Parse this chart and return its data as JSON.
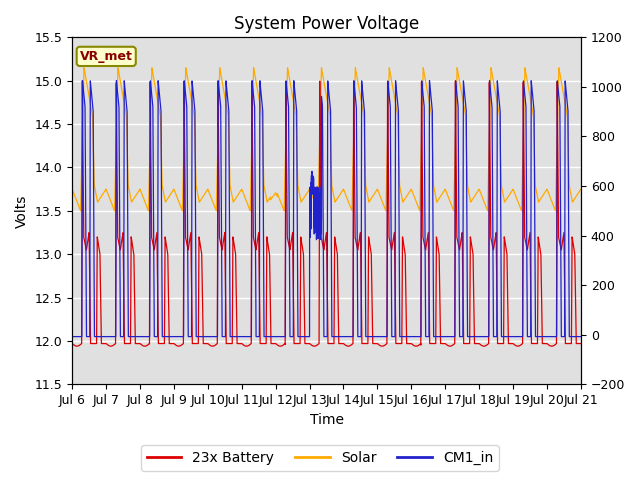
{
  "title": "System Power Voltage",
  "xlabel": "Time",
  "ylabel": "Volts",
  "xlim_days": [
    6,
    21
  ],
  "ylim_left": [
    11.5,
    15.5
  ],
  "ylim_right": [
    -200,
    1200
  ],
  "yticks_left": [
    11.5,
    12.0,
    12.5,
    13.0,
    13.5,
    14.0,
    14.5,
    15.0,
    15.5
  ],
  "yticks_right": [
    -200,
    0,
    200,
    400,
    600,
    800,
    1000,
    1200
  ],
  "xtick_labels": [
    "Jul 6",
    "Jul 7",
    "Jul 8",
    "Jul 9",
    "Jul 10",
    "Jul 11",
    "Jul 12",
    "Jul 13",
    "Jul 14",
    "Jul 15",
    "Jul 16",
    "Jul 17",
    "Jul 18",
    "Jul 19",
    "Jul 20",
    "Jul 21"
  ],
  "battery_color": "#dd0000",
  "solar_color": "#ffaa00",
  "cm1_color": "#2222cc",
  "legend_labels": [
    "23x Battery",
    "Solar",
    "CM1_in"
  ],
  "vr_met_label": "VR_met",
  "background_color": "#e0e0e0",
  "grid_color": "white",
  "title_fontsize": 12,
  "label_fontsize": 10,
  "tick_fontsize": 9,
  "legend_fontsize": 10
}
